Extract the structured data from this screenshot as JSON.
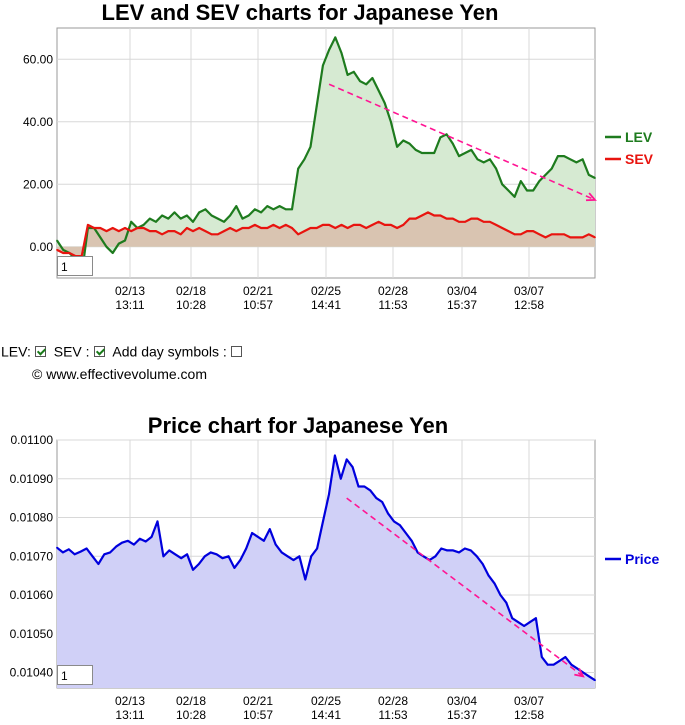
{
  "chart_data": [
    {
      "type": "area",
      "title": "LEV and SEV charts for Japanese Yen",
      "x_tick_labels": [
        {
          "date": "02/13",
          "time": "13:11"
        },
        {
          "date": "02/18",
          "time": "10:28"
        },
        {
          "date": "02/21",
          "time": "10:57"
        },
        {
          "date": "02/25",
          "time": "14:41"
        },
        {
          "date": "02/28",
          "time": "11:53"
        },
        {
          "date": "03/04",
          "time": "15:37"
        },
        {
          "date": "03/07",
          "time": "12:58"
        }
      ],
      "y_ticks": [
        "0.00",
        "20.00",
        "40.00",
        "60.00"
      ],
      "ylim": [
        -10,
        70
      ],
      "legend_position": "right",
      "grid": true,
      "series": [
        {
          "name": "LEV",
          "color": "#1e7b1e",
          "fill": "#d6ead2",
          "values": [
            2,
            -1,
            -2,
            -4,
            -9,
            6,
            6,
            3,
            0,
            -2,
            1,
            2,
            8,
            6,
            7,
            9,
            8,
            10,
            9,
            11,
            9,
            10,
            8,
            11,
            12,
            10,
            9,
            8,
            10,
            13,
            9,
            10,
            12,
            11,
            13,
            12,
            13,
            12,
            12,
            25,
            28,
            32,
            45,
            58,
            63,
            67,
            62,
            55,
            56,
            53,
            52,
            54,
            50,
            46,
            40,
            32,
            34,
            33,
            31,
            30,
            30,
            30,
            35,
            36,
            33,
            29,
            30,
            31,
            28,
            27,
            28,
            25,
            20,
            18,
            16,
            21,
            18,
            18,
            21,
            23,
            25,
            29,
            29,
            28,
            27,
            28,
            23,
            22
          ]
        },
        {
          "name": "SEV",
          "color": "#e8140f",
          "fill": "#d9c0ad",
          "values": [
            -1,
            -2,
            -2,
            -3,
            -3,
            7,
            6,
            6,
            5,
            6,
            5,
            6,
            5,
            6,
            6,
            5,
            5,
            4,
            5,
            5,
            4,
            6,
            5,
            6,
            5,
            4,
            4,
            5,
            6,
            5,
            6,
            6,
            7,
            6,
            6,
            7,
            6,
            7,
            6,
            4,
            5,
            6,
            6,
            7,
            7,
            6,
            7,
            6,
            7,
            7,
            6,
            7,
            8,
            7,
            7,
            6,
            7,
            9,
            9,
            10,
            11,
            10,
            10,
            9,
            9,
            8,
            8,
            9,
            9,
            8,
            8,
            7,
            6,
            5,
            4,
            4,
            5,
            5,
            4,
            3,
            4,
            4,
            4,
            3,
            3,
            3,
            4,
            3
          ]
        }
      ],
      "trend_arrow": {
        "from": {
          "x_index": 44,
          "y": 52
        },
        "to": {
          "x_index": 87,
          "y": 15
        },
        "color": "#ff1493"
      },
      "zoom_value": "1"
    },
    {
      "type": "area",
      "title": "Price chart for Japanese Yen",
      "x_tick_labels": [
        {
          "date": "02/13",
          "time": "13:11"
        },
        {
          "date": "02/18",
          "time": "10:28"
        },
        {
          "date": "02/21",
          "time": "10:57"
        },
        {
          "date": "02/25",
          "time": "14:41"
        },
        {
          "date": "02/28",
          "time": "11:53"
        },
        {
          "date": "03/04",
          "time": "15:37"
        },
        {
          "date": "03/07",
          "time": "12:58"
        }
      ],
      "y_ticks": [
        "0.01040",
        "0.01050",
        "0.01060",
        "0.01070",
        "0.01080",
        "0.01090",
        "0.01100"
      ],
      "ylim": [
        0.01036,
        0.011
      ],
      "legend_position": "right",
      "grid": true,
      "series": [
        {
          "name": "Price",
          "color": "#0000dd",
          "fill": "#d0d0f7",
          "values": [
            0.010722,
            0.01071,
            0.010718,
            0.010705,
            0.010712,
            0.01072,
            0.0107,
            0.01068,
            0.010705,
            0.01071,
            0.010725,
            0.010735,
            0.01074,
            0.01073,
            0.010745,
            0.010738,
            0.01075,
            0.01079,
            0.0107,
            0.010715,
            0.010705,
            0.010695,
            0.010705,
            0.010665,
            0.01068,
            0.0107,
            0.01071,
            0.010705,
            0.010695,
            0.0107,
            0.01067,
            0.01069,
            0.01072,
            0.01076,
            0.01075,
            0.01074,
            0.01077,
            0.01073,
            0.01071,
            0.0107,
            0.01069,
            0.0107,
            0.01064,
            0.0107,
            0.01072,
            0.01079,
            0.01086,
            0.01096,
            0.0109,
            0.01095,
            0.01093,
            0.01088,
            0.01088,
            0.01087,
            0.01085,
            0.01084,
            0.01081,
            0.01079,
            0.01078,
            0.01076,
            0.01074,
            0.01071,
            0.0107,
            0.01069,
            0.0107,
            0.01072,
            0.010715,
            0.010715,
            0.01071,
            0.01072,
            0.010715,
            0.0107,
            0.01068,
            0.01065,
            0.01063,
            0.0106,
            0.01058,
            0.01054,
            0.01053,
            0.01052,
            0.01053,
            0.01054,
            0.01044,
            0.01042,
            0.01042,
            0.01043,
            0.01044,
            0.01042,
            0.01041,
            0.0104,
            0.01039,
            0.01038
          ]
        }
      ],
      "trend_arrow": {
        "from": {
          "x_index": 49,
          "y": 0.01085
        },
        "to": {
          "x_index": 89,
          "y": 0.01039
        },
        "color": "#ff1493"
      },
      "zoom_value": "1"
    }
  ],
  "controls": {
    "lev_label": "LEV:",
    "sev_label": "SEV :",
    "day_symbols_label": "Add day symbols :",
    "lev_checked": true,
    "sev_checked": true,
    "day_symbols_checked": false
  },
  "copyright": "© www.effectivevolume.com"
}
